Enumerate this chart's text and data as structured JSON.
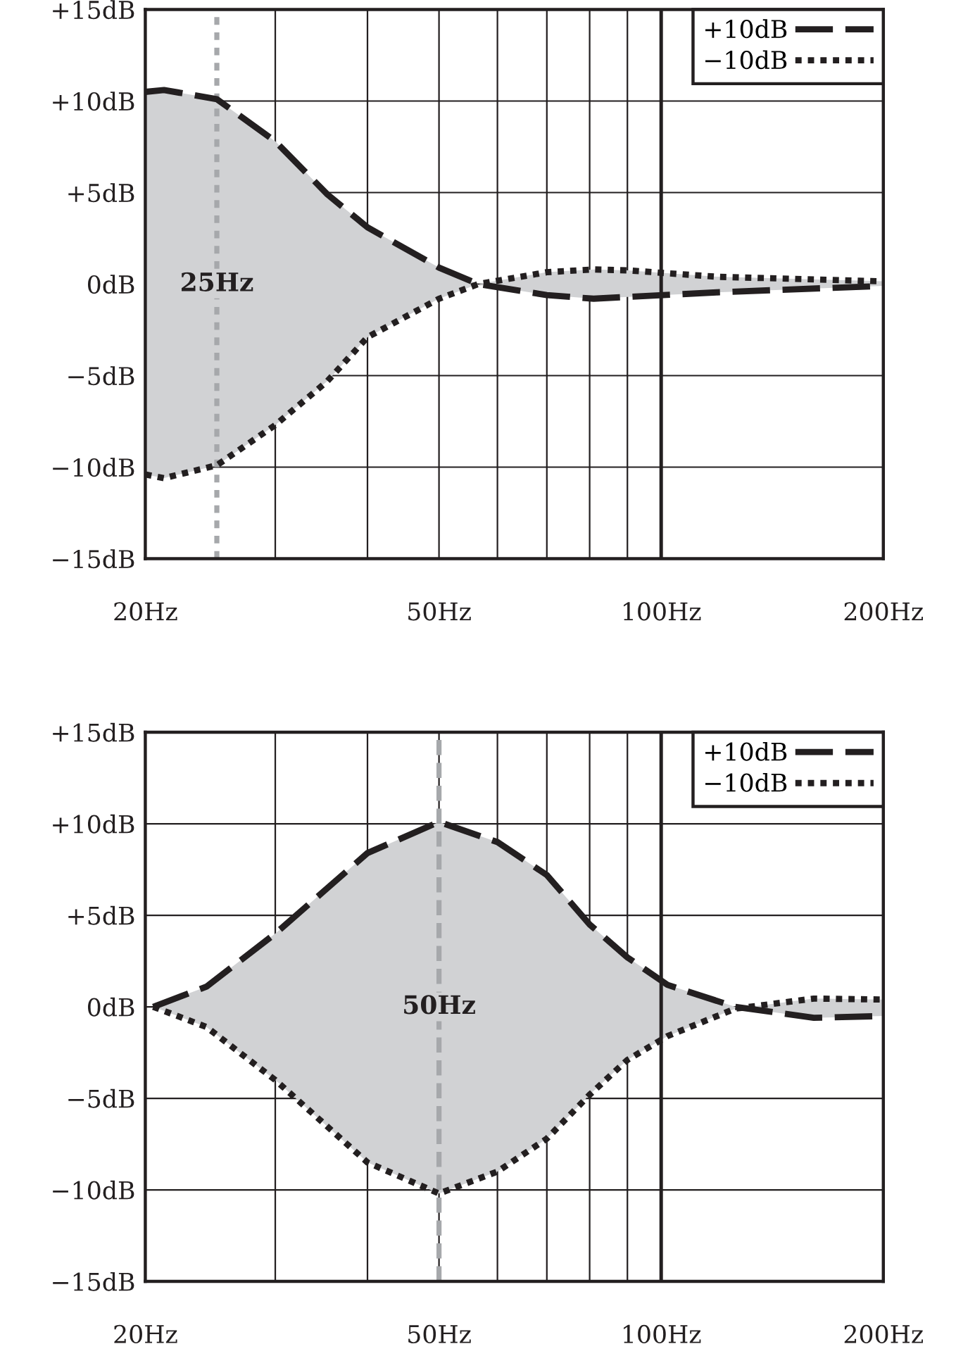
{
  "chart_data": [
    {
      "type": "line",
      "log": "x",
      "grid": true,
      "legend": "top right",
      "xlim": [
        20,
        200
      ],
      "ylim": [
        -15,
        15
      ],
      "xticks": [
        {
          "value": 20,
          "label": "20Hz"
        },
        {
          "value": 30,
          "label": null
        },
        {
          "value": 40,
          "label": null
        },
        {
          "value": 50,
          "label": "50Hz"
        },
        {
          "value": 60,
          "label": null
        },
        {
          "value": 70,
          "label": null
        },
        {
          "value": 80,
          "label": null
        },
        {
          "value": 90,
          "label": null
        },
        {
          "value": 100,
          "label": "100Hz"
        },
        {
          "value": 200,
          "label": "200Hz"
        }
      ],
      "yticks": [
        {
          "value": 15,
          "label": "+15dB"
        },
        {
          "value": 10,
          "label": "+10dB"
        },
        {
          "value": 5,
          "label": "+5dB"
        },
        {
          "value": 0,
          "label": "0dB"
        },
        {
          "value": -5,
          "label": "−5dB"
        },
        {
          "value": -10,
          "label": "−10dB"
        },
        {
          "value": -15,
          "label": "−15dB"
        }
      ],
      "ref_lines": [
        {
          "axis": "x",
          "value": 25,
          "label": "25Hz",
          "color": "#a6a8ab",
          "line_style": "dotted"
        },
        {
          "axis": "x",
          "value": 100,
          "color": "#231f20",
          "line_style": "solid"
        }
      ],
      "series": [
        {
          "name": "+10dB",
          "color": "#231f20",
          "line_style": "dashed",
          "x": [
            20,
            21.2,
            25,
            30,
            35.3,
            40,
            50,
            56.5,
            70,
            81,
            90,
            119,
            200
          ],
          "values": [
            10.5,
            10.6,
            10.1,
            7.8,
            4.9,
            3.1,
            0.9,
            0,
            -0.6,
            -0.8,
            -0.7,
            -0.45,
            -0.1
          ],
          "lower": [
            -10.4,
            -10.6,
            -9.9,
            -7.7,
            -5.3,
            -2.9,
            -0.8,
            0,
            0.65,
            0.8,
            0.75,
            0.4,
            0.15
          ],
          "upper": [
            10.5,
            10.6,
            10.1,
            7.8,
            4.9,
            3.1,
            0.9,
            0,
            -0.6,
            -0.8,
            -0.7,
            -0.45,
            -0.1
          ]
        },
        {
          "name": "−10dB",
          "color": "#231f20",
          "line_style": "dotted",
          "x": [
            20,
            21.2,
            25,
            30,
            35.3,
            40,
            50,
            56.5,
            70,
            81,
            90,
            119,
            200
          ],
          "values": [
            -10.4,
            -10.6,
            -9.9,
            -7.7,
            -5.3,
            -2.9,
            -0.8,
            0,
            0.65,
            0.8,
            0.75,
            0.4,
            0.15
          ]
        }
      ]
    },
    {
      "type": "line",
      "log": "x",
      "grid": true,
      "legend": "top right",
      "xlim": [
        20,
        200
      ],
      "ylim": [
        -15,
        15
      ],
      "xticks": [
        {
          "value": 20,
          "label": "20Hz"
        },
        {
          "value": 30,
          "label": null
        },
        {
          "value": 40,
          "label": null
        },
        {
          "value": 50,
          "label": "50Hz"
        },
        {
          "value": 60,
          "label": null
        },
        {
          "value": 70,
          "label": null
        },
        {
          "value": 80,
          "label": null
        },
        {
          "value": 90,
          "label": null
        },
        {
          "value": 100,
          "label": "100Hz"
        },
        {
          "value": 200,
          "label": "200Hz"
        }
      ],
      "yticks": [
        {
          "value": 15,
          "label": "+15dB"
        },
        {
          "value": 10,
          "label": "+10dB"
        },
        {
          "value": 5,
          "label": "+5dB"
        },
        {
          "value": 0,
          "label": "0dB"
        },
        {
          "value": -5,
          "label": "−5dB"
        },
        {
          "value": -10,
          "label": "−10dB"
        },
        {
          "value": -15,
          "label": "−15dB"
        }
      ],
      "ref_lines": [
        {
          "axis": "x",
          "value": 50,
          "label": "50Hz",
          "color": "#a6a8ab",
          "line_style": "dashed"
        },
        {
          "axis": "x",
          "value": 100,
          "color": "#231f20",
          "line_style": "solid"
        }
      ],
      "series": [
        {
          "name": "+10dB",
          "color": "#231f20",
          "line_style": "dashed",
          "x": [
            20.5,
            24.2,
            30,
            40,
            50,
            60,
            70,
            80,
            90,
            102,
            126,
            161,
            200
          ],
          "values": [
            0,
            1.1,
            4.0,
            8.4,
            10.1,
            9.0,
            7.2,
            4.5,
            2.7,
            1.2,
            0,
            -0.6,
            -0.5
          ],
          "lower": [
            0,
            -1.1,
            -4.0,
            -8.5,
            -10.2,
            -9.0,
            -7.2,
            -4.8,
            -2.9,
            -1.6,
            -0.1,
            0.45,
            0.4
          ],
          "upper": [
            0,
            1.1,
            4.0,
            8.4,
            10.1,
            9.0,
            7.2,
            4.5,
            2.7,
            1.2,
            0,
            -0.6,
            -0.5
          ]
        },
        {
          "name": "−10dB",
          "color": "#231f20",
          "line_style": "dotted",
          "x": [
            20.5,
            24.2,
            30,
            40,
            50,
            60,
            70,
            80,
            90,
            102,
            126,
            161,
            200
          ],
          "values": [
            0,
            -1.1,
            -4.0,
            -8.5,
            -10.2,
            -9.0,
            -7.2,
            -4.8,
            -2.9,
            -1.6,
            -0.1,
            0.45,
            0.4
          ]
        }
      ]
    }
  ]
}
